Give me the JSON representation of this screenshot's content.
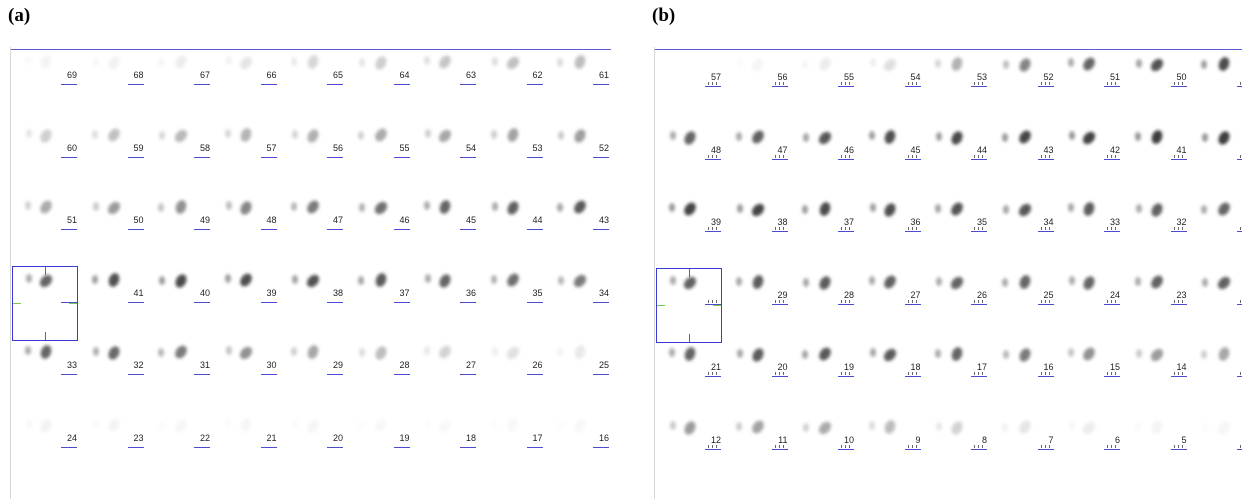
{
  "panels": [
    {
      "label": "(a)",
      "first_row_top": 50,
      "rows": [
        [
          "69",
          "68",
          "67",
          "66",
          "65",
          "64",
          "63",
          "62",
          "61"
        ],
        [
          "60",
          "59",
          "58",
          "57",
          "56",
          "55",
          "54",
          "53",
          "52"
        ],
        [
          "51",
          "50",
          "49",
          "48",
          "47",
          "46",
          "45",
          "44",
          "43"
        ],
        [
          "",
          "41",
          "40",
          "39",
          "38",
          "37",
          "36",
          "35",
          "34"
        ],
        [
          "33",
          "32",
          "31",
          "30",
          "29",
          "28",
          "27",
          "26",
          "25"
        ],
        [
          "24",
          "23",
          "22",
          "21",
          "20",
          "19",
          "18",
          "17",
          "16"
        ]
      ]
    },
    {
      "label": "(b)",
      "first_row_top": 52,
      "rows": [
        [
          "57",
          "56",
          "55",
          "54",
          "53",
          "52",
          "51",
          "50",
          ""
        ],
        [
          "48",
          "47",
          "46",
          "45",
          "44",
          "43",
          "42",
          "41",
          ""
        ],
        [
          "39",
          "38",
          "37",
          "36",
          "35",
          "34",
          "33",
          "32",
          ""
        ],
        [
          "",
          "29",
          "28",
          "27",
          "26",
          "25",
          "24",
          "23",
          ""
        ],
        [
          "21",
          "20",
          "19",
          "18",
          "17",
          "16",
          "15",
          "14",
          ""
        ],
        [
          "12",
          "11",
          "10",
          "9",
          "8",
          "7",
          "6",
          "5",
          ""
        ]
      ]
    }
  ]
}
